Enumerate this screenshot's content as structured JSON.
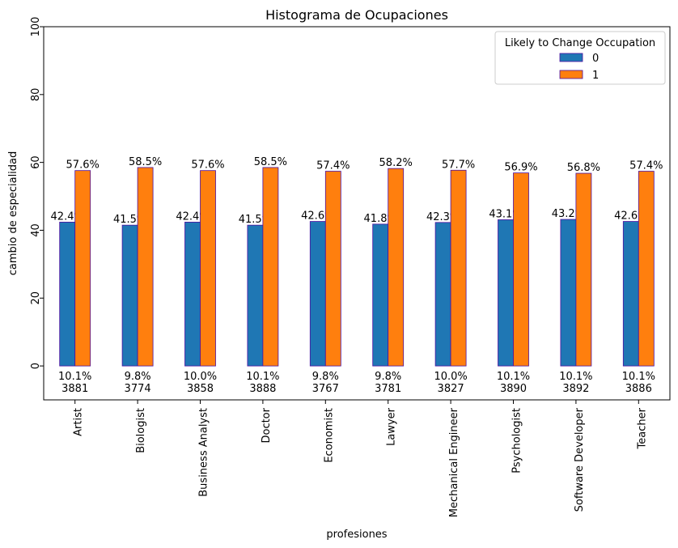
{
  "chart_data": {
    "type": "bar",
    "title": "Histograma de Ocupaciones",
    "xlabel": "profesiones",
    "ylabel": "cambio de especialidad",
    "ylim": [
      -10,
      100
    ],
    "yticks": [
      0,
      20,
      40,
      60,
      80,
      100
    ],
    "grid": false,
    "legend_placement": "top-right",
    "legend_title": "Likely to Change Occupation",
    "categories": [
      "Artist",
      "Biologist",
      "Business Analyst",
      "Doctor",
      "Economist",
      "Lawyer",
      "Mechanical Engineer",
      "Psychologist",
      "Software Developer",
      "Teacher"
    ],
    "series": [
      {
        "name": "0",
        "color": "#1f77b4",
        "values": [
          42.4,
          41.5,
          42.4,
          41.5,
          42.6,
          41.8,
          42.3,
          43.1,
          43.2,
          42.6
        ],
        "labels": [
          "42.4%",
          "41.5%",
          "42.4%",
          "41.5%",
          "42.6%",
          "41.8%",
          "42.3%",
          "43.1%",
          "43.2%",
          "42.6%"
        ]
      },
      {
        "name": "1",
        "color": "#ff7f0e",
        "values": [
          57.6,
          58.5,
          57.6,
          58.5,
          57.4,
          58.2,
          57.7,
          56.9,
          56.8,
          57.4
        ],
        "labels": [
          "57.6%",
          "58.5%",
          "57.6%",
          "58.5%",
          "57.4%",
          "58.2%",
          "57.7%",
          "56.9%",
          "56.8%",
          "57.4%"
        ]
      }
    ],
    "bar_edge_color": "#4b0fa0",
    "share_labels": [
      "10.1%",
      "9.8%",
      "10.0%",
      "10.1%",
      "9.8%",
      "9.8%",
      "10.0%",
      "10.1%",
      "10.1%",
      "10.1%"
    ],
    "count_labels": [
      "3881",
      "3774",
      "3858",
      "3888",
      "3767",
      "3781",
      "3827",
      "3890",
      "3892",
      "3886"
    ]
  }
}
